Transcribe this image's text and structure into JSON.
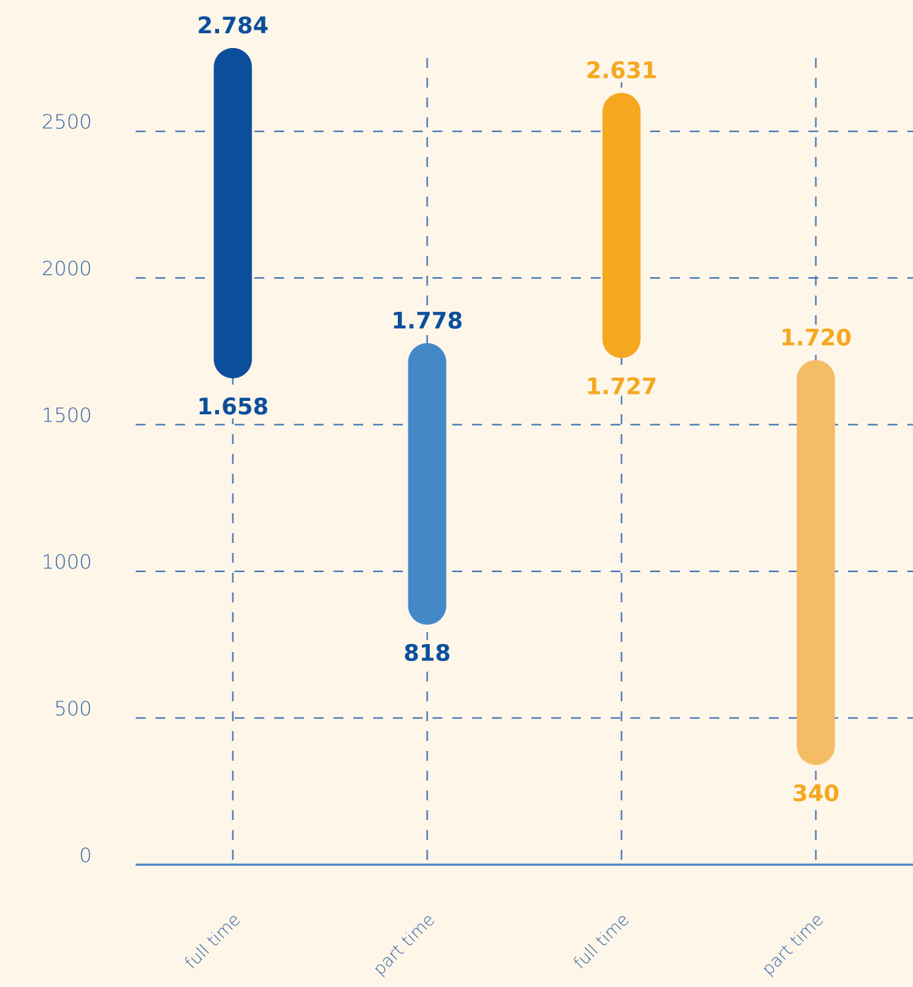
{
  "chart_data": {
    "type": "range_bar",
    "categories": [
      "full time",
      "part time",
      "full time",
      "part time"
    ],
    "low": [
      1658,
      818,
      1727,
      340
    ],
    "high": [
      2784,
      1778,
      2631,
      1720
    ],
    "low_labels": [
      "1.658",
      "818",
      "1.727",
      "340"
    ],
    "high_labels": [
      "2.784",
      "1.778",
      "2.631",
      "1.720"
    ],
    "colors": [
      "#0b4f9c",
      "#4488c8",
      "#f5a71f",
      "#f5bc66"
    ],
    "label_colors": [
      "#0b4f9c",
      "#0b4f9c",
      "#f5a71f",
      "#f5a71f"
    ],
    "ylim": [
      0,
      2750
    ],
    "yticks": [
      0,
      500,
      1000,
      1500,
      2000,
      2500
    ],
    "grid": true
  }
}
